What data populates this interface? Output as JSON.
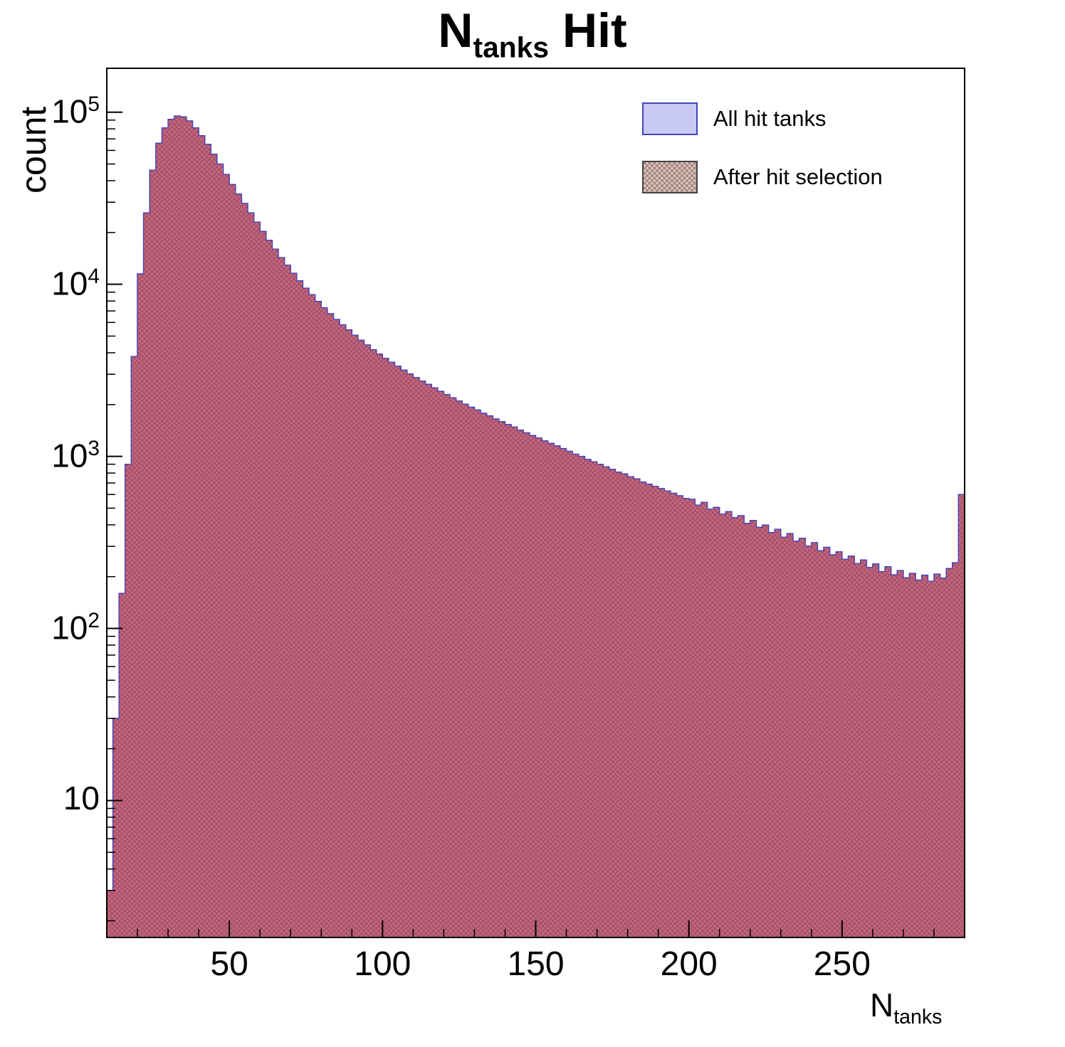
{
  "title": {
    "prefix": "N",
    "sub": "tanks",
    "suffix": " Hit"
  },
  "y_axis_label": "count",
  "x_axis_label": {
    "prefix": "N",
    "sub": "tanks"
  },
  "legend": {
    "items": [
      {
        "label": "All hit tanks",
        "style": "solid-blue"
      },
      {
        "label": "After hit selection",
        "style": "hatched-red"
      }
    ]
  },
  "colors": {
    "blue_fill": "#c9c9f5",
    "blue_edge": "#4444bb",
    "red_fill": "#c2677f",
    "red_hatch": "#8e3a52",
    "red_edge": "#8c2a4a",
    "legend_hatch_bg": "#cfc9b8",
    "frame": "#000000"
  },
  "chart_data": {
    "type": "bar",
    "style": "step-histogram",
    "title": "N_tanks Hit",
    "xlabel": "N_tanks",
    "ylabel": "count",
    "yscale": "log",
    "xlim": [
      10,
      290
    ],
    "ylim": [
      1.6,
      180000
    ],
    "xticks": [
      50,
      100,
      150,
      200,
      250
    ],
    "x_minor_tick_step": 10,
    "yticks": [
      10,
      100,
      1000,
      10000,
      100000
    ],
    "grid": false,
    "legend_position": "top-right",
    "bin_start": 10,
    "bin_width": 2,
    "series": [
      {
        "name": "All hit tanks",
        "values": [
          3,
          30,
          160,
          900,
          3800,
          11500,
          26000,
          46000,
          66000,
          81000,
          91000,
          95000,
          94000,
          89000,
          81000,
          73000,
          65000,
          57000,
          50000,
          43500,
          38000,
          33500,
          29500,
          26000,
          23000,
          20300,
          18000,
          16000,
          14300,
          12900,
          11600,
          10500,
          9500,
          8700,
          7950,
          7300,
          6750,
          6250,
          5820,
          5430,
          5060,
          4730,
          4440,
          4170,
          3930,
          3710,
          3520,
          3340,
          3170,
          3010,
          2870,
          2740,
          2620,
          2500,
          2390,
          2290,
          2190,
          2100,
          2010,
          1930,
          1860,
          1780,
          1720,
          1650,
          1590,
          1530,
          1480,
          1420,
          1370,
          1320,
          1280,
          1230,
          1190,
          1150,
          1110,
          1070,
          1030,
          1000,
          960,
          930,
          900,
          870,
          840,
          810,
          790,
          760,
          740,
          710,
          690,
          670,
          650,
          630,
          610,
          590,
          570,
          563,
          521,
          540,
          493,
          505,
          462,
          478,
          441,
          452,
          408,
          424,
          387,
          399,
          361,
          377,
          339,
          356,
          322,
          334,
          301,
          315,
          283,
          296,
          268,
          279,
          252,
          263,
          238,
          250,
          226,
          237,
          214,
          228,
          205,
          217,
          197,
          209,
          191,
          204,
          188,
          207,
          196,
          223,
          241,
          600
        ]
      },
      {
        "name": "After hit selection",
        "values": [
          3,
          30,
          160,
          900,
          3800,
          11500,
          26000,
          46000,
          66000,
          81000,
          91000,
          95000,
          94000,
          89000,
          81000,
          73000,
          65000,
          57000,
          50000,
          43500,
          38000,
          33500,
          29500,
          26000,
          23000,
          20300,
          18000,
          16000,
          14300,
          12900,
          11600,
          10500,
          9500,
          8700,
          7950,
          7300,
          6750,
          6250,
          5820,
          5430,
          5060,
          4730,
          4440,
          4170,
          3930,
          3710,
          3520,
          3340,
          3170,
          3010,
          2870,
          2740,
          2620,
          2500,
          2390,
          2290,
          2190,
          2100,
          2010,
          1930,
          1860,
          1780,
          1720,
          1650,
          1590,
          1530,
          1480,
          1420,
          1370,
          1320,
          1280,
          1230,
          1190,
          1150,
          1110,
          1070,
          1030,
          1000,
          960,
          930,
          900,
          870,
          840,
          810,
          790,
          760,
          740,
          710,
          690,
          670,
          650,
          630,
          610,
          590,
          570,
          563,
          521,
          540,
          493,
          505,
          462,
          478,
          441,
          452,
          408,
          424,
          387,
          399,
          361,
          377,
          339,
          356,
          322,
          334,
          301,
          315,
          283,
          296,
          268,
          279,
          252,
          263,
          238,
          250,
          226,
          237,
          214,
          228,
          205,
          217,
          197,
          209,
          191,
          204,
          188,
          207,
          196,
          223,
          241,
          600
        ]
      }
    ]
  }
}
